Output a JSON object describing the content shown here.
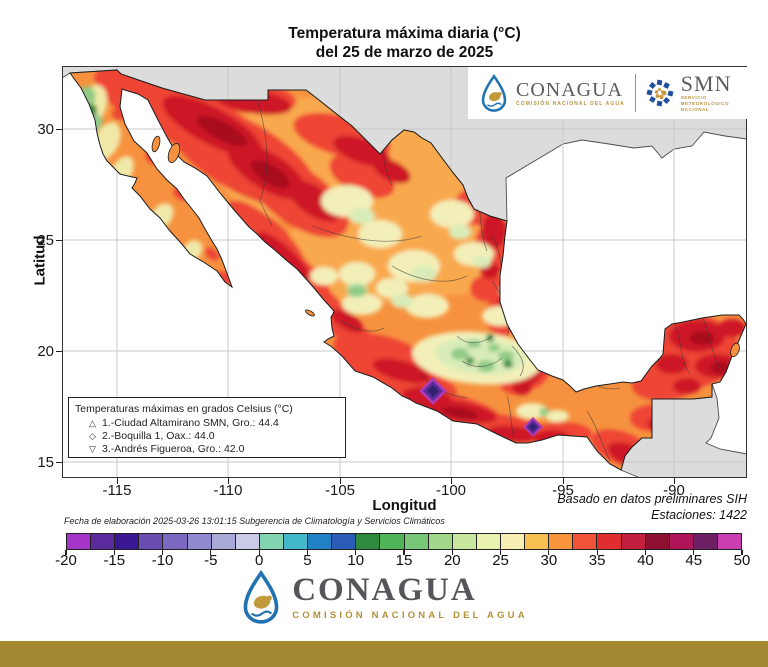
{
  "title": {
    "line1": "Temperatura máxima diaria (°C)",
    "line2": "del 25 de marzo de 2025"
  },
  "header": {
    "conagua_wordmark": "CONAGUA",
    "conagua_subtitle": "COMISIÓN NACIONAL DEL AGUA",
    "smn_wordmark": "SMN",
    "smn_subtitle_line1": "SERVICIO",
    "smn_subtitle_line2": "METEOROLÓGICO",
    "smn_subtitle_line3": "NACIONAL"
  },
  "axes": {
    "x_label": "Longitud",
    "y_label": "Latitud",
    "x_ticks": [
      "-115",
      "-110",
      "-105",
      "-100",
      "-95",
      "-90"
    ],
    "y_ticks": [
      "30",
      "25",
      "20",
      "15"
    ]
  },
  "map_legend": {
    "title": "Temperaturas máximas en grados Celsius (°C)",
    "entries": [
      {
        "marker": "△",
        "label": "1.-Ciudad Altamirano SMN, Gro.: 44.4"
      },
      {
        "marker": "◇",
        "label": "2.-Boquilla 1, Oax.: 44.0"
      },
      {
        "marker": "▽",
        "label": "3.-Andrés Figueroa, Gro.: 42.0"
      }
    ]
  },
  "notes": {
    "elaboration": "Fecha de elaboración 2025-03-26 13:01:15 Subgerencia de Climatología y Servicios Climáticos",
    "preliminary": "Basado en datos preliminares SIH",
    "stations": "Estaciones: 1422"
  },
  "colorbar": {
    "unit": "°C",
    "min": -20,
    "max": 50,
    "step": 2.5,
    "tick_labels": [
      "-20",
      "-15",
      "-10",
      "-5",
      "0",
      "5",
      "10",
      "15",
      "20",
      "25",
      "30",
      "35",
      "40",
      "45",
      "50"
    ],
    "colors": [
      "#a435c8",
      "#5b2b9d",
      "#3a1794",
      "#6a4cb2",
      "#7b69c1",
      "#9089cf",
      "#aaaad9",
      "#cbcbe8",
      "#83d4b0",
      "#42b8ca",
      "#2082c4",
      "#2b5cb5",
      "#2e8b3e",
      "#4fb357",
      "#78c677",
      "#a2d789",
      "#c9e89f",
      "#e9f2ae",
      "#f8f0b2",
      "#f8c050",
      "#f9953c",
      "#f2543a",
      "#e02d2d",
      "#c21f3e",
      "#8d1030",
      "#ae1458",
      "#6d1f63",
      "#ca3eb1"
    ]
  },
  "footer": {
    "conagua_wordmark": "CONAGUA",
    "conagua_subtitle": "COMISIÓN NACIONAL DEL AGUA"
  },
  "colors": {
    "accent_gold": "#a58832",
    "map_background_gray": "#dcdcdc",
    "ocean_white": "#ffffff",
    "land_base_orange": "#f6923f"
  },
  "chart_data": {
    "type": "heatmap",
    "title": "Temperatura máxima diaria (°C) del 25 de marzo de 2025",
    "region": "México",
    "xlabel": "Longitud",
    "ylabel": "Latitud",
    "x_range": [
      -115,
      -90
    ],
    "y_range": [
      15,
      30
    ],
    "colorbar_range_c": [
      -20,
      50
    ],
    "colorbar_step_c": 2.5,
    "record_maxima": [
      {
        "rank": 1,
        "station": "Ciudad Altamirano SMN",
        "state": "Gro.",
        "max_c": 44.4
      },
      {
        "rank": 2,
        "station": "Boquilla 1",
        "state": "Oax.",
        "max_c": 44.0
      },
      {
        "rank": 3,
        "station": "Andrés Figueroa",
        "state": "Gro.",
        "max_c": 42.0
      }
    ],
    "stations_count": 1422,
    "source": "Basado en datos preliminares SIH"
  }
}
